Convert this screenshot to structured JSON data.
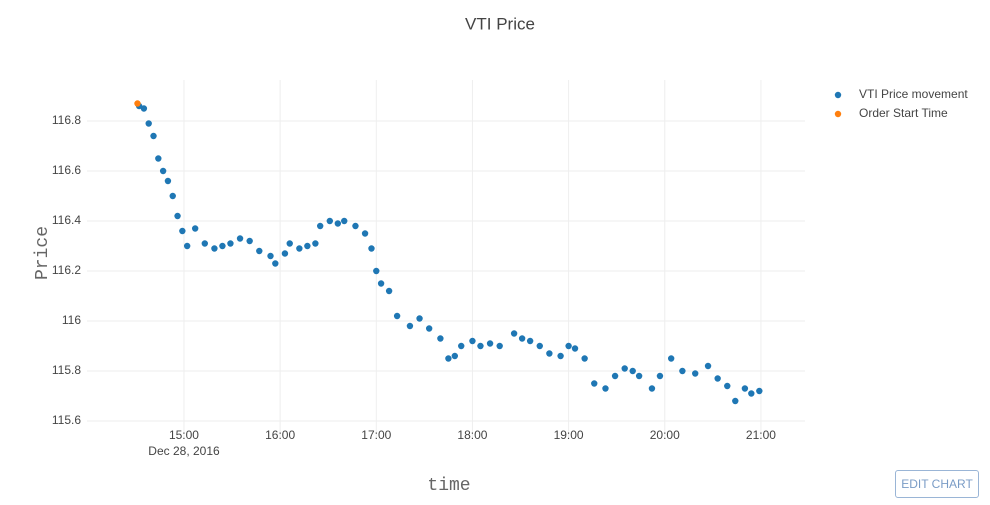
{
  "chart_data": {
    "type": "scatter",
    "title": "VTI Price",
    "x_label": "time",
    "y_label": "Price",
    "x_date_label": "Dec 28, 2016",
    "xlim": [
      "2016-12-28 13:59:30",
      "2016-12-28 21:27:30"
    ],
    "xticks": [
      {
        "value": "2016-12-28 15:00",
        "label": "15:00"
      },
      {
        "value": "2016-12-28 16:00",
        "label": "16:00"
      },
      {
        "value": "2016-12-28 17:00",
        "label": "17:00"
      },
      {
        "value": "2016-12-28 18:00",
        "label": "18:00"
      },
      {
        "value": "2016-12-28 19:00",
        "label": "19:00"
      },
      {
        "value": "2016-12-28 20:00",
        "label": "20:00"
      },
      {
        "value": "2016-12-28 21:00",
        "label": "21:00"
      }
    ],
    "ylim": [
      115.536,
      116.964
    ],
    "yticks": [
      115.6,
      115.8,
      116,
      116.2,
      116.4,
      116.6,
      116.8
    ],
    "grid": true,
    "legend": "top-right",
    "series": [
      {
        "name": "VTI Price movement",
        "color": "#1f77b4",
        "x": [
          "2016-12-28 14:32",
          "2016-12-28 14:35",
          "2016-12-28 14:38",
          "2016-12-28 14:41",
          "2016-12-28 14:44",
          "2016-12-28 14:47",
          "2016-12-28 14:50",
          "2016-12-28 14:53",
          "2016-12-28 14:56",
          "2016-12-28 14:59",
          "2016-12-28 15:02",
          "2016-12-28 15:07",
          "2016-12-28 15:13",
          "2016-12-28 15:19",
          "2016-12-28 15:24",
          "2016-12-28 15:29",
          "2016-12-28 15:35",
          "2016-12-28 15:41",
          "2016-12-28 15:47",
          "2016-12-28 15:54",
          "2016-12-28 15:57",
          "2016-12-28 16:03",
          "2016-12-28 16:06",
          "2016-12-28 16:12",
          "2016-12-28 16:17",
          "2016-12-28 16:22",
          "2016-12-28 16:25",
          "2016-12-28 16:31",
          "2016-12-28 16:36",
          "2016-12-28 16:40",
          "2016-12-28 16:47",
          "2016-12-28 16:53",
          "2016-12-28 16:57",
          "2016-12-28 17:00",
          "2016-12-28 17:03",
          "2016-12-28 17:08",
          "2016-12-28 17:13",
          "2016-12-28 17:21",
          "2016-12-28 17:27",
          "2016-12-28 17:33",
          "2016-12-28 17:40",
          "2016-12-28 17:45",
          "2016-12-28 17:49",
          "2016-12-28 17:53",
          "2016-12-28 18:00",
          "2016-12-28 18:05",
          "2016-12-28 18:11",
          "2016-12-28 18:17",
          "2016-12-28 18:26",
          "2016-12-28 18:31",
          "2016-12-28 18:36",
          "2016-12-28 18:42",
          "2016-12-28 18:48",
          "2016-12-28 18:55",
          "2016-12-28 19:00",
          "2016-12-28 19:04",
          "2016-12-28 19:10",
          "2016-12-28 19:16",
          "2016-12-28 19:23",
          "2016-12-28 19:29",
          "2016-12-28 19:35",
          "2016-12-28 19:40",
          "2016-12-28 19:44",
          "2016-12-28 19:52",
          "2016-12-28 19:57",
          "2016-12-28 20:04",
          "2016-12-28 20:11",
          "2016-12-28 20:19",
          "2016-12-28 20:27",
          "2016-12-28 20:33",
          "2016-12-28 20:39",
          "2016-12-28 20:44",
          "2016-12-28 20:50",
          "2016-12-28 20:54",
          "2016-12-28 20:59"
        ],
        "values": [
          116.86,
          116.85,
          116.79,
          116.74,
          116.65,
          116.6,
          116.56,
          116.5,
          116.42,
          116.36,
          116.3,
          116.37,
          116.31,
          116.29,
          116.3,
          116.31,
          116.33,
          116.32,
          116.28,
          116.26,
          116.23,
          116.27,
          116.31,
          116.29,
          116.3,
          116.31,
          116.38,
          116.4,
          116.39,
          116.4,
          116.38,
          116.35,
          116.29,
          116.2,
          116.15,
          116.12,
          116.02,
          115.98,
          116.01,
          115.97,
          115.93,
          115.85,
          115.86,
          115.9,
          115.92,
          115.9,
          115.91,
          115.9,
          115.95,
          115.93,
          115.92,
          115.9,
          115.87,
          115.86,
          115.9,
          115.89,
          115.85,
          115.75,
          115.73,
          115.78,
          115.81,
          115.8,
          115.78,
          115.73,
          115.78,
          115.85,
          115.8,
          115.79,
          115.82,
          115.77,
          115.74,
          115.68,
          115.73,
          115.71,
          115.72
        ]
      },
      {
        "name": "Order Start Time",
        "color": "#ff7f0e",
        "x": [
          "2016-12-28 14:31"
        ],
        "values": [
          116.87
        ]
      }
    ]
  },
  "ui": {
    "edit_button": "EDIT CHART"
  }
}
